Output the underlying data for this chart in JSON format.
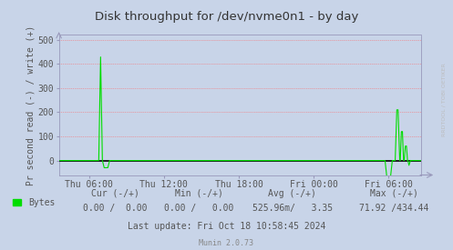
{
  "title": "Disk throughput for /dev/nvme0n1 - by day",
  "ylabel": "Pr second read (-) / write (+)",
  "bg_color": "#c8d4e8",
  "plot_bg_color": "#c8d4e8",
  "grid_color": "#ff6666",
  "line_color": "#00dd00",
  "zero_line_color": "#000000",
  "title_color": "#333333",
  "label_color": "#555555",
  "watermark": "RRDTOOL / TOBI OETIKER",
  "legend_label": "Bytes",
  "footer_cur": "Cur (-/+)",
  "footer_min": "Min (-/+)",
  "footer_avg": "Avg (-/+)",
  "footer_max": "Max (-/+)",
  "footer_bytes_cur": "0.00 /  0.00",
  "footer_bytes_min": "0.00 /   0.00",
  "footer_bytes_avg": "525.96m/   3.35",
  "footer_bytes_max": "71.92 /434.44",
  "footer_lastupdate": "Last update: Fri Oct 18 10:58:45 2024",
  "footer_munin": "Munin 2.0.73",
  "xtick_labels": [
    "Thu 06:00",
    "Thu 12:00",
    "Thu 18:00",
    "Fri 00:00",
    "Fri 06:00"
  ],
  "xtick_positions": [
    0.083,
    0.29,
    0.497,
    0.703,
    0.91
  ],
  "ytick_vals": [
    0,
    100,
    200,
    300,
    400,
    500
  ],
  "ylim_low": -60,
  "ylim_high": 520,
  "arrow_color": "#9999bb",
  "spine_color": "#9999bb"
}
